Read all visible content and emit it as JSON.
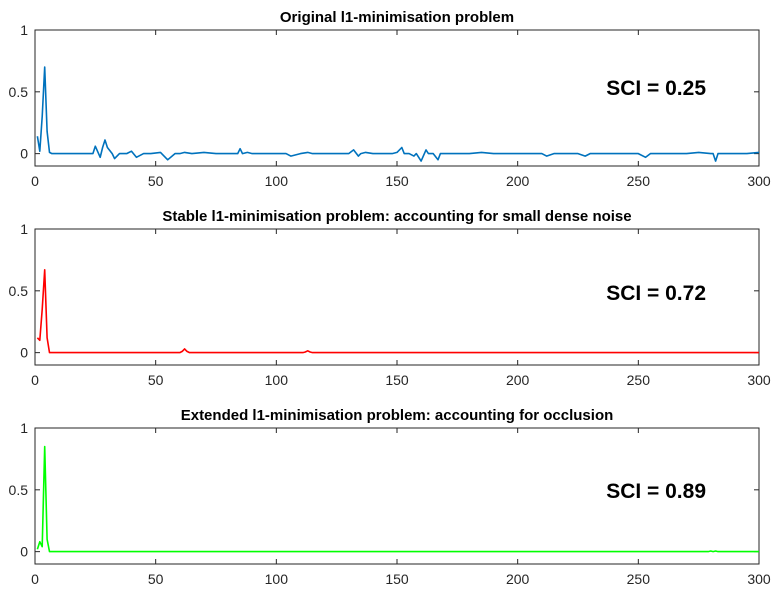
{
  "chart_data": [
    {
      "type": "line",
      "title": "Original l1-minimisation problem",
      "annotation": "SCI = 0.25",
      "color": "#0072BD",
      "xlim": [
        0,
        300
      ],
      "ylim": [
        -0.1,
        1
      ],
      "xticks": [
        "0",
        "50",
        "100",
        "150",
        "200",
        "250",
        "300"
      ],
      "yticks": [
        "0",
        "0.5",
        "1"
      ],
      "series": [
        {
          "x": [
            1,
            2,
            3,
            4,
            5,
            6,
            7,
            10,
            15,
            20,
            24,
            25,
            27,
            28,
            29,
            30,
            32,
            33,
            35,
            38,
            40,
            42,
            45,
            48,
            52,
            55,
            58,
            60,
            62,
            65,
            70,
            75,
            80,
            84,
            85,
            86,
            88,
            90,
            95,
            100,
            104,
            106,
            110,
            113,
            115,
            120,
            125,
            130,
            132,
            134,
            135,
            137,
            140,
            145,
            148,
            150,
            152,
            153,
            155,
            157,
            158,
            160,
            162,
            163,
            165,
            167,
            168,
            170,
            175,
            180,
            185,
            190,
            195,
            200,
            205,
            210,
            212,
            215,
            220,
            225,
            228,
            230,
            235,
            240,
            245,
            250,
            253,
            255,
            260,
            265,
            270,
            275,
            280,
            281,
            282,
            283,
            285,
            290,
            295,
            300
          ],
          "y": [
            0.14,
            0.02,
            0.3,
            0.7,
            0.18,
            0.01,
            0.0,
            0.0,
            0.0,
            0.0,
            0.0,
            0.06,
            -0.03,
            0.05,
            0.11,
            0.05,
            0.0,
            -0.04,
            0.0,
            0.0,
            0.02,
            -0.03,
            0.0,
            0.0,
            0.01,
            -0.05,
            0.0,
            0.0,
            0.01,
            0.0,
            0.01,
            0.0,
            0.0,
            0.0,
            0.04,
            0.0,
            0.01,
            0.0,
            0.0,
            0.0,
            0.0,
            -0.02,
            0.0,
            0.01,
            0.0,
            0.0,
            0.0,
            0.0,
            0.03,
            -0.02,
            0.0,
            0.01,
            0.0,
            0.0,
            0.0,
            0.01,
            0.05,
            0.0,
            0.0,
            -0.02,
            0.0,
            -0.06,
            0.03,
            0.0,
            0.0,
            -0.05,
            0.0,
            0.0,
            0.0,
            0.0,
            0.01,
            0.0,
            0.0,
            0.0,
            0.0,
            0.0,
            -0.02,
            0.0,
            0.0,
            0.0,
            -0.02,
            0.0,
            0.0,
            0.0,
            0.0,
            0.0,
            -0.03,
            0.0,
            0.0,
            0.0,
            0.0,
            0.01,
            0.0,
            0.0,
            -0.06,
            0.0,
            0.0,
            0.0,
            0.0,
            0.01
          ]
        }
      ]
    },
    {
      "type": "line",
      "title": "Stable l1-minimisation problem: accounting for small dense noise",
      "annotation": "SCI = 0.72",
      "color": "#FF0000",
      "xlim": [
        0,
        300
      ],
      "ylim": [
        -0.1,
        1
      ],
      "xticks": [
        "0",
        "50",
        "100",
        "150",
        "200",
        "250",
        "300"
      ],
      "yticks": [
        "0",
        "0.5",
        "1"
      ],
      "series": [
        {
          "x": [
            1,
            2,
            3,
            4,
            5,
            6,
            8,
            60,
            61,
            62,
            63,
            64,
            111,
            112,
            113,
            114,
            115,
            300
          ],
          "y": [
            0.12,
            0.1,
            0.35,
            0.67,
            0.12,
            0.0,
            0.0,
            0.0,
            0.01,
            0.03,
            0.01,
            0.0,
            0.0,
            0.005,
            0.015,
            0.005,
            0.0,
            0.0
          ]
        }
      ]
    },
    {
      "type": "line",
      "title": "Extended l1-minimisation problem: accounting for occlusion",
      "annotation": "SCI = 0.89",
      "color": "#00FF00",
      "xlim": [
        0,
        300
      ],
      "ylim": [
        -0.1,
        1
      ],
      "xticks": [
        "0",
        "50",
        "100",
        "150",
        "200",
        "250",
        "300"
      ],
      "yticks": [
        "0",
        "0.5",
        "1"
      ],
      "series": [
        {
          "x": [
            1,
            2,
            3,
            4,
            5,
            6,
            8,
            279,
            280,
            281,
            282,
            283,
            300
          ],
          "y": [
            0.02,
            0.08,
            0.04,
            0.85,
            0.1,
            0.0,
            0.0,
            0.0,
            0.005,
            0.0,
            0.005,
            0.0,
            0.0
          ]
        }
      ]
    }
  ]
}
